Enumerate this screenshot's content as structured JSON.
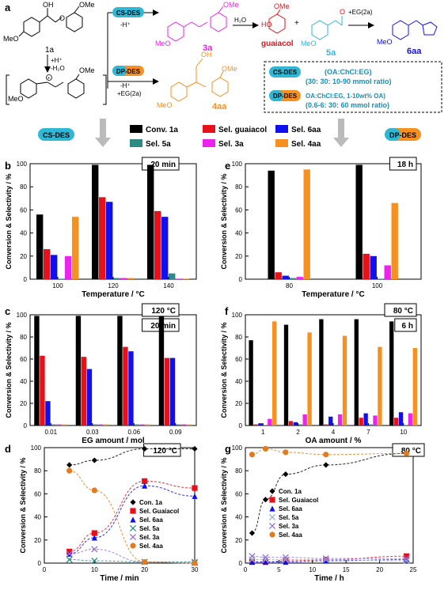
{
  "scheme": {
    "panel_label": "a",
    "sm_oh": "OH",
    "sm_ome": "OMe",
    "sm_meo": "MeO",
    "sm_id": "1a",
    "step1": "+H⁺",
    "step2": "-H₂O",
    "cation_ome": "OMe",
    "cation_meo": "MeO",
    "route_cs_label": "CS-DES",
    "route_cs_step": "-H⁺",
    "route_dp_label": "DP-DES",
    "route_dp_step1": "-H⁺",
    "route_dp_step2": "+EG(2a)",
    "p3a_ome": "OMe",
    "p3a_meo": "MeO",
    "p3a_id": "3a",
    "water": "H₂O",
    "guaiacol_ho": "HO",
    "guaiacol_ome": "OMe",
    "guaiacol_name": "guaiacol",
    "plus": "+",
    "p5a_o": "O",
    "p5a_meo": "MeO",
    "p5a_id": "5a",
    "eg_step": "+EG(2a)",
    "p6aa_meo": "MeO",
    "p6aa_id": "6aa",
    "p4aa_oh": "OH",
    "p4aa_ome": "OMe",
    "p4aa_meo": "MeO",
    "p4aa_id": "4aa",
    "box_cs_label": "CS-DES",
    "box_cs_line1": "(OA:ChCl:EG)",
    "box_cs_line2": "(30: 30: 10-90 mmol ratio)",
    "box_dp_label": "DP-DES",
    "box_dp_line1": "OA:ChCl:EG, 1-10wt% OA)",
    "box_dp_line2": "(0.6-6: 30: 60 mmol ratio)",
    "left_badge": "CS-DES",
    "right_badge": "DP-DES"
  },
  "legend": [
    {
      "label": "Conv. 1a",
      "color": "#000000"
    },
    {
      "label": "Sel. guaiacol",
      "color": "#e8111a"
    },
    {
      "label": "Sel. 6aa",
      "color": "#1010ee"
    },
    {
      "label": "Sel. 5a",
      "color": "#2e8b84"
    },
    {
      "label": "Sel. 3a",
      "color": "#ee22ee"
    },
    {
      "label": "Sel. 4aa",
      "color": "#f7901e"
    }
  ],
  "colors": {
    "conv": "#000000",
    "guaiacol": "#e8111a",
    "aa6": "#1010ee",
    "a5": "#2e8b84",
    "a3": "#ee22ee",
    "aa4": "#f7901e",
    "cs_badge": "#2fb8d6",
    "dp_badge": "#f7901e",
    "arrow_gray": "#bbbbbb"
  },
  "chart_data": [
    {
      "id": "b",
      "type": "bar",
      "panel_label": "b",
      "tags": [
        "20 min"
      ],
      "xlabel": "Temperature / °C",
      "ylabel": "Conversion & Selectivity / %",
      "ylim": [
        0,
        100
      ],
      "yticks": [
        0,
        20,
        40,
        60,
        80,
        100
      ],
      "categories": [
        "100",
        "120",
        "140"
      ],
      "series": [
        {
          "name": "Conv. 1a",
          "color": "#000000",
          "values": [
            56,
            99,
            99
          ]
        },
        {
          "name": "Sel. guaiacol",
          "color": "#e8111a",
          "values": [
            26,
            71,
            59
          ]
        },
        {
          "name": "Sel. 6aa",
          "color": "#1010ee",
          "values": [
            21,
            67,
            54
          ]
        },
        {
          "name": "Sel. 5a",
          "color": "#2e8b84",
          "values": [
            0,
            1,
            5
          ]
        },
        {
          "name": "Sel. 3a",
          "color": "#ee22ee",
          "values": [
            20,
            1,
            0
          ]
        },
        {
          "name": "Sel. 4aa",
          "color": "#f7901e",
          "values": [
            54,
            1,
            0
          ]
        }
      ]
    },
    {
      "id": "e",
      "type": "bar",
      "panel_label": "e",
      "tags": [
        "18 h"
      ],
      "xlabel": "Temperature / °C",
      "ylabel": "Conversion & Selectivity / %",
      "ylim": [
        0,
        100
      ],
      "yticks": [
        0,
        20,
        40,
        60,
        80,
        100
      ],
      "categories": [
        "80",
        "100"
      ],
      "series": [
        {
          "name": "Conv. 1a",
          "color": "#000000",
          "values": [
            94,
            99
          ]
        },
        {
          "name": "Sel. guaiacol",
          "color": "#e8111a",
          "values": [
            6,
            22
          ]
        },
        {
          "name": "Sel. 6aa",
          "color": "#1010ee",
          "values": [
            3,
            20
          ]
        },
        {
          "name": "Sel. 5a",
          "color": "#2e8b84",
          "values": [
            1,
            0
          ]
        },
        {
          "name": "Sel. 3a",
          "color": "#ee22ee",
          "values": [
            2,
            12
          ]
        },
        {
          "name": "Sel. 4aa",
          "color": "#f7901e",
          "values": [
            95,
            66
          ]
        }
      ]
    },
    {
      "id": "c",
      "type": "bar",
      "panel_label": "c",
      "tags": [
        "120 °C",
        "20 min"
      ],
      "xlabel": "EG amount / mol",
      "ylabel": "Conversion & Selectivity / %",
      "ylim": [
        0,
        100
      ],
      "yticks": [
        0,
        20,
        40,
        60,
        80,
        100
      ],
      "categories": [
        "0.01",
        "0.03",
        "0.06",
        "0.09"
      ],
      "series": [
        {
          "name": "Conv. 1a",
          "color": "#000000",
          "values": [
            99,
            99,
            99,
            99
          ]
        },
        {
          "name": "Sel. guaiacol",
          "color": "#e8111a",
          "values": [
            63,
            62,
            71,
            61
          ]
        },
        {
          "name": "Sel. 6aa",
          "color": "#1010ee",
          "values": [
            22,
            51,
            67,
            61
          ]
        },
        {
          "name": "Sel. 5a",
          "color": "#2e8b84",
          "values": [
            1,
            1,
            1,
            1
          ]
        },
        {
          "name": "Sel. 3a",
          "color": "#ee22ee",
          "values": [
            1,
            1,
            1,
            1
          ]
        },
        {
          "name": "Sel. 4aa",
          "color": "#f7901e",
          "values": [
            1,
            1,
            1,
            1
          ]
        }
      ]
    },
    {
      "id": "f",
      "type": "bar",
      "panel_label": "f",
      "tags": [
        "80 °C",
        "6 h"
      ],
      "xlabel": "OA amount / %",
      "ylabel": "Conversion & Selectivity / %",
      "ylim": [
        0,
        100
      ],
      "yticks": [
        0,
        20,
        40,
        60,
        80,
        100
      ],
      "categories": [
        "1",
        "2",
        "4",
        "7",
        "10"
      ],
      "series": [
        {
          "name": "Conv. 1a",
          "color": "#000000",
          "values": [
            77,
            91,
            96,
            96,
            94
          ]
        },
        {
          "name": "Sel. guaiacol",
          "color": "#e8111a",
          "values": [
            1,
            4,
            1,
            7,
            7
          ]
        },
        {
          "name": "Sel. 6aa",
          "color": "#1010ee",
          "values": [
            2,
            3,
            8,
            11,
            12
          ]
        },
        {
          "name": "Sel. 5a",
          "color": "#2e8b84",
          "values": [
            0,
            1,
            0,
            1,
            0
          ]
        },
        {
          "name": "Sel. 3a",
          "color": "#ee22ee",
          "values": [
            6,
            10,
            10,
            9,
            11
          ]
        },
        {
          "name": "Sel. 4aa",
          "color": "#f7901e",
          "values": [
            94,
            84,
            81,
            71,
            70
          ]
        }
      ]
    },
    {
      "id": "d",
      "type": "scatter",
      "panel_label": "d",
      "tags": [
        "120 °C"
      ],
      "xlabel": "Time / min",
      "ylabel": "Conversion & Selectivity / %",
      "xlim": [
        0,
        30
      ],
      "xticks": [
        0,
        10,
        20,
        30
      ],
      "ylim": [
        0,
        100
      ],
      "yticks": [
        0,
        20,
        40,
        60,
        80,
        100
      ],
      "legend_position": "right",
      "series": [
        {
          "name": "Con. 1a",
          "color": "#000000",
          "marker": "diamond",
          "x": [
            5,
            10,
            20,
            30
          ],
          "y": [
            85,
            89,
            99,
            99
          ]
        },
        {
          "name": "Sel. Guaiacol",
          "color": "#e8111a",
          "marker": "square",
          "x": [
            5,
            10,
            20,
            30
          ],
          "y": [
            10,
            26,
            71,
            65
          ]
        },
        {
          "name": "Sel. 6aa",
          "color": "#1010ee",
          "marker": "triangle",
          "x": [
            5,
            10,
            20,
            30
          ],
          "y": [
            8,
            22,
            67,
            58
          ]
        },
        {
          "name": "Sel. 5a",
          "color": "#2e8b84",
          "marker": "x",
          "x": [
            5,
            10,
            20,
            30
          ],
          "y": [
            3,
            2,
            1,
            1
          ]
        },
        {
          "name": "Sel. 3a",
          "color": "#9370db",
          "marker": "x",
          "x": [
            5,
            10,
            20,
            30
          ],
          "y": [
            8,
            12,
            1,
            0
          ]
        },
        {
          "name": "Sel. 4aa",
          "color": "#e07b20",
          "marker": "circle",
          "x": [
            5,
            10,
            20,
            30
          ],
          "y": [
            80,
            63,
            1,
            0
          ]
        }
      ]
    },
    {
      "id": "g",
      "type": "scatter",
      "panel_label": "g",
      "tags": [
        "80 °C"
      ],
      "xlabel": "Time / h",
      "ylabel": "Conversion & Selectivity / %",
      "xlim": [
        0,
        25
      ],
      "xticks": [
        0,
        5,
        10,
        15,
        20,
        25
      ],
      "ylim": [
        0,
        100
      ],
      "yticks": [
        0,
        20,
        40,
        60,
        80,
        100
      ],
      "legend_position": "center",
      "series": [
        {
          "name": "Con. 1a",
          "color": "#000000",
          "marker": "diamond",
          "x": [
            1,
            3,
            6,
            12,
            24
          ],
          "y": [
            26,
            55,
            77,
            85,
            95
          ]
        },
        {
          "name": "Sel. Guaiacol",
          "color": "#e8111a",
          "marker": "square",
          "x": [
            1,
            3,
            6,
            12,
            24
          ],
          "y": [
            1,
            1,
            2,
            3,
            6
          ]
        },
        {
          "name": "Sel. 6aa",
          "color": "#1010ee",
          "marker": "triangle",
          "x": [
            1,
            3,
            6,
            12,
            24
          ],
          "y": [
            1,
            1,
            1,
            2,
            3
          ]
        },
        {
          "name": "Sel. 5a",
          "color": "#9ab0c8",
          "marker": "x",
          "x": [
            1,
            3,
            6,
            12,
            24
          ],
          "y": [
            3,
            3,
            3,
            3,
            2
          ]
        },
        {
          "name": "Sel. 3a",
          "color": "#9370db",
          "marker": "x",
          "x": [
            1,
            3,
            6,
            12,
            24
          ],
          "y": [
            6,
            5,
            5,
            4,
            4
          ]
        },
        {
          "name": "Sel. 4aa",
          "color": "#e07b20",
          "marker": "circle",
          "x": [
            1,
            3,
            6,
            12,
            24
          ],
          "y": [
            94,
            99,
            96,
            94,
            95
          ]
        }
      ]
    }
  ]
}
